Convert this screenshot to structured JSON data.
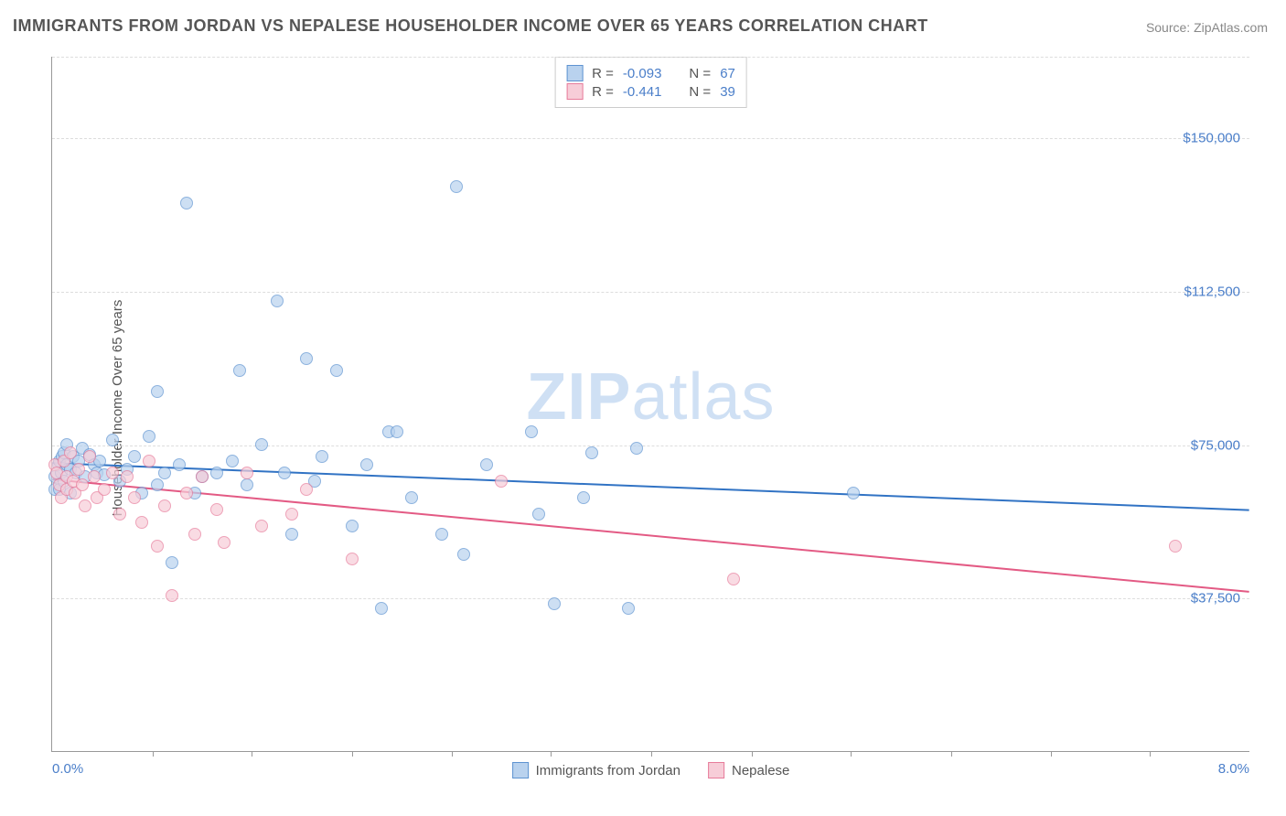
{
  "title": "IMMIGRANTS FROM JORDAN VS NEPALESE HOUSEHOLDER INCOME OVER 65 YEARS CORRELATION CHART",
  "source_prefix": "Source: ",
  "source_name": "ZipAtlas.com",
  "watermark_bold": "ZIP",
  "watermark_light": "atlas",
  "chart": {
    "type": "scatter",
    "ylabel": "Householder Income Over 65 years",
    "xlim": [
      0.0,
      8.0
    ],
    "ylim": [
      0,
      170000
    ],
    "x_min_label": "0.0%",
    "x_max_label": "8.0%",
    "y_ticks": [
      37500,
      75000,
      112500,
      150000
    ],
    "y_tick_labels": [
      "$37,500",
      "$75,000",
      "$112,500",
      "$150,000"
    ],
    "x_tick_positions": [
      0.67,
      1.33,
      2.0,
      2.67,
      3.33,
      4.0,
      4.67,
      5.33,
      6.0,
      6.67,
      7.33
    ],
    "grid_color": "#dddddd",
    "axis_color": "#999999",
    "background_color": "#ffffff",
    "marker_radius": 7,
    "marker_border_width": 1.5,
    "series": [
      {
        "name": "Immigrants from Jordan",
        "fill": "#b9d2ee",
        "stroke": "#5e93d1",
        "line_color": "#3173c4",
        "line_width": 2,
        "R_label": "R = ",
        "R": "-0.093",
        "N_label": "N = ",
        "N": "67",
        "trend": {
          "x1": 0.0,
          "y1": 70500,
          "x2": 8.0,
          "y2": 59000
        },
        "points": [
          [
            0.02,
            64000
          ],
          [
            0.02,
            67000
          ],
          [
            0.04,
            70000
          ],
          [
            0.05,
            64000
          ],
          [
            0.05,
            71000
          ],
          [
            0.06,
            68000
          ],
          [
            0.07,
            72000
          ],
          [
            0.08,
            66000
          ],
          [
            0.08,
            73000
          ],
          [
            0.1,
            70000
          ],
          [
            0.1,
            75000
          ],
          [
            0.12,
            69000
          ],
          [
            0.12,
            63000
          ],
          [
            0.14,
            72000
          ],
          [
            0.16,
            68000
          ],
          [
            0.18,
            71000
          ],
          [
            0.2,
            74000
          ],
          [
            0.22,
            67000
          ],
          [
            0.25,
            72500
          ],
          [
            0.28,
            70000
          ],
          [
            0.3,
            68000
          ],
          [
            0.32,
            71000
          ],
          [
            0.35,
            67500
          ],
          [
            0.4,
            76000
          ],
          [
            0.45,
            66000
          ],
          [
            0.5,
            69000
          ],
          [
            0.55,
            72000
          ],
          [
            0.6,
            63000
          ],
          [
            0.65,
            77000
          ],
          [
            0.7,
            88000
          ],
          [
            0.7,
            65000
          ],
          [
            0.75,
            68000
          ],
          [
            0.8,
            46000
          ],
          [
            0.85,
            70000
          ],
          [
            0.9,
            134000
          ],
          [
            0.95,
            63000
          ],
          [
            1.0,
            67000
          ],
          [
            1.1,
            68000
          ],
          [
            1.2,
            71000
          ],
          [
            1.25,
            93000
          ],
          [
            1.3,
            65000
          ],
          [
            1.4,
            75000
          ],
          [
            1.5,
            110000
          ],
          [
            1.55,
            68000
          ],
          [
            1.6,
            53000
          ],
          [
            1.7,
            96000
          ],
          [
            1.75,
            66000
          ],
          [
            1.8,
            72000
          ],
          [
            1.9,
            93000
          ],
          [
            2.0,
            55000
          ],
          [
            2.1,
            70000
          ],
          [
            2.2,
            35000
          ],
          [
            2.25,
            78000
          ],
          [
            2.3,
            78000
          ],
          [
            2.4,
            62000
          ],
          [
            2.6,
            53000
          ],
          [
            2.7,
            138000
          ],
          [
            2.75,
            48000
          ],
          [
            2.9,
            70000
          ],
          [
            3.2,
            78000
          ],
          [
            3.25,
            58000
          ],
          [
            3.35,
            36000
          ],
          [
            3.55,
            62000
          ],
          [
            3.6,
            73000
          ],
          [
            3.85,
            35000
          ],
          [
            3.9,
            74000
          ],
          [
            5.35,
            63000
          ]
        ]
      },
      {
        "name": "Nepalese",
        "fill": "#f7cdd8",
        "stroke": "#e77c9b",
        "line_color": "#e35a84",
        "line_width": 2,
        "R_label": "R = ",
        "R": "-0.441",
        "N_label": "N = ",
        "N": "39",
        "trend": {
          "x1": 0.0,
          "y1": 66500,
          "x2": 8.0,
          "y2": 39000
        },
        "points": [
          [
            0.02,
            70000
          ],
          [
            0.03,
            68000
          ],
          [
            0.05,
            65000
          ],
          [
            0.06,
            62000
          ],
          [
            0.08,
            71000
          ],
          [
            0.1,
            67000
          ],
          [
            0.1,
            64000
          ],
          [
            0.12,
            73000
          ],
          [
            0.14,
            66000
          ],
          [
            0.15,
            63000
          ],
          [
            0.18,
            69000
          ],
          [
            0.2,
            65000
          ],
          [
            0.22,
            60000
          ],
          [
            0.25,
            72000
          ],
          [
            0.28,
            67000
          ],
          [
            0.3,
            62000
          ],
          [
            0.35,
            64000
          ],
          [
            0.4,
            68000
          ],
          [
            0.45,
            58000
          ],
          [
            0.5,
            67000
          ],
          [
            0.55,
            62000
          ],
          [
            0.6,
            56000
          ],
          [
            0.65,
            71000
          ],
          [
            0.7,
            50000
          ],
          [
            0.75,
            60000
          ],
          [
            0.8,
            38000
          ],
          [
            0.9,
            63000
          ],
          [
            0.95,
            53000
          ],
          [
            1.0,
            67000
          ],
          [
            1.1,
            59000
          ],
          [
            1.15,
            51000
          ],
          [
            1.3,
            68000
          ],
          [
            1.4,
            55000
          ],
          [
            1.6,
            58000
          ],
          [
            1.7,
            64000
          ],
          [
            2.0,
            47000
          ],
          [
            3.0,
            66000
          ],
          [
            4.55,
            42000
          ],
          [
            7.5,
            50000
          ]
        ]
      }
    ]
  },
  "legend_bottom": [
    {
      "label": "Immigrants from Jordan",
      "fill": "#b9d2ee",
      "stroke": "#5e93d1"
    },
    {
      "label": "Nepalese",
      "fill": "#f7cdd8",
      "stroke": "#e77c9b"
    }
  ]
}
